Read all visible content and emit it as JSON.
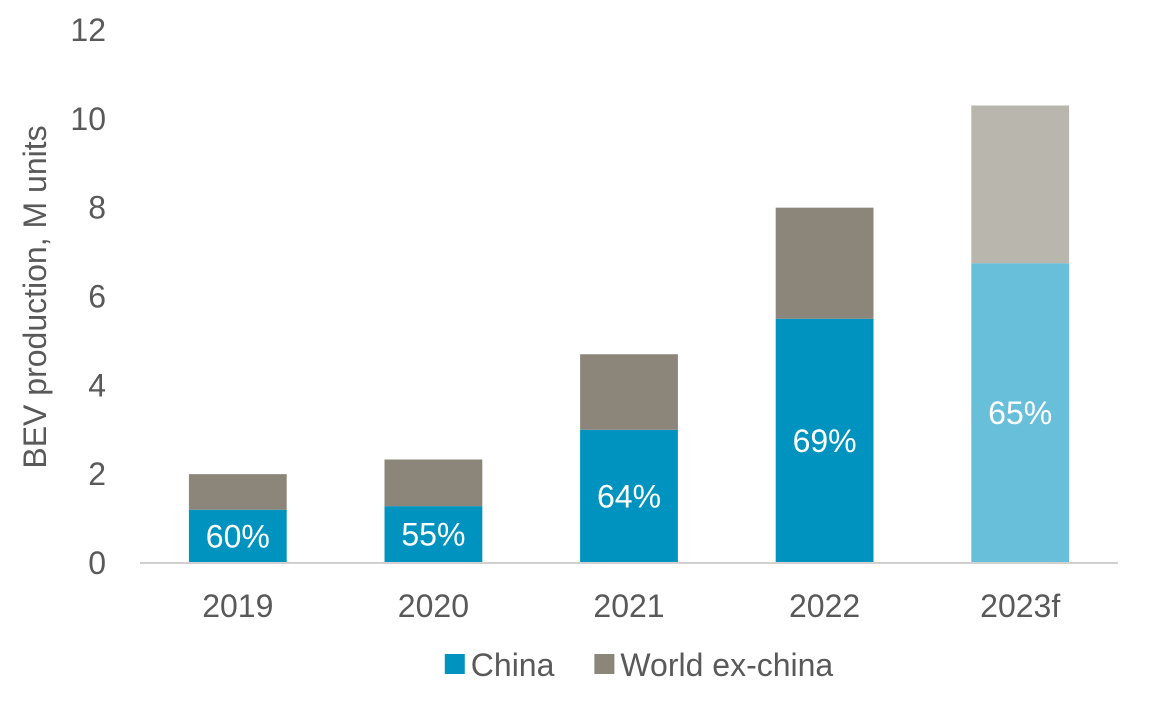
{
  "chart_data": {
    "type": "bar",
    "stacked": true,
    "title": "",
    "xlabel": "",
    "ylabel": "BEV production, M units",
    "ylim": [
      0,
      12
    ],
    "yticks": [
      0,
      2,
      4,
      6,
      8,
      10,
      12
    ],
    "grid": false,
    "legend_position": "bottom",
    "categories": [
      "2019",
      "2020",
      "2021",
      "2022",
      "2023f"
    ],
    "series": [
      {
        "name": "China",
        "values": [
          1.2,
          1.28,
          3.0,
          5.5,
          6.75
        ],
        "color": "#0093BF",
        "forecast_color": "#68BFDA",
        "data_labels": [
          "60%",
          "55%",
          "64%",
          "69%",
          "65%"
        ]
      },
      {
        "name": "World ex-china",
        "values": [
          0.8,
          1.05,
          1.7,
          2.5,
          3.55
        ],
        "color": "#8B857A",
        "forecast_color": "#B9B6AE"
      }
    ],
    "forecast_categories": [
      "2023f"
    ]
  }
}
